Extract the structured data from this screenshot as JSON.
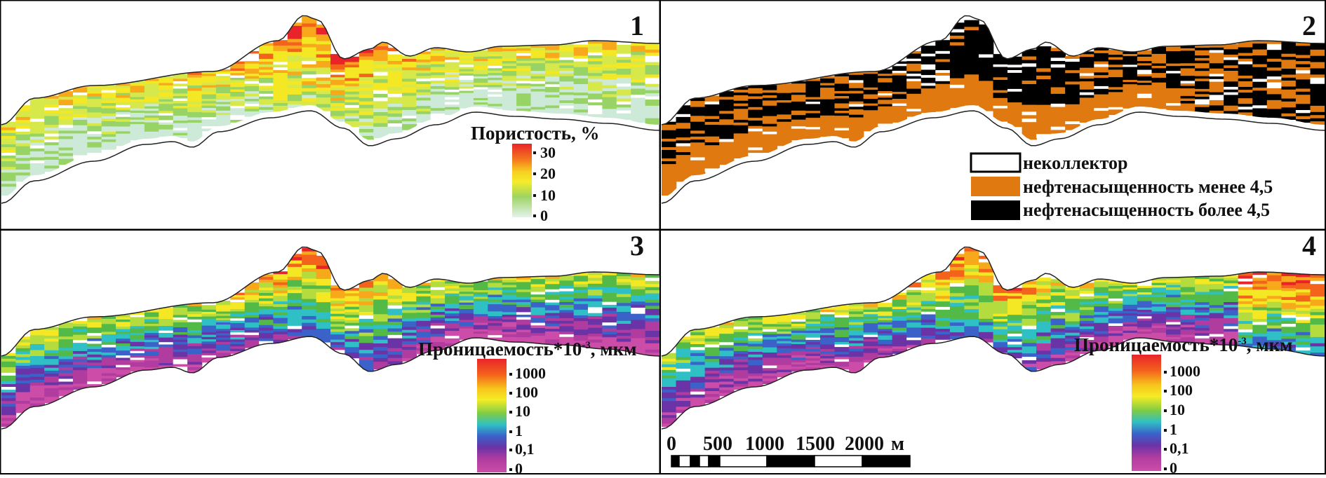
{
  "panels": [
    {
      "number": "1"
    },
    {
      "number": "2"
    },
    {
      "number": "3"
    },
    {
      "number": "4"
    }
  ],
  "porosity_scale": {
    "title": "Пористость, %",
    "ticks": [
      "30",
      "20",
      "10",
      "0"
    ]
  },
  "saturation_legend": [
    {
      "label": "неколлектор",
      "color": "#ffffff"
    },
    {
      "label": "нефтенасыщенность менее 4,5",
      "color": "#e07a10"
    },
    {
      "label": "нефтенасыщенность более 4,5",
      "color": "#000000"
    }
  ],
  "permeability_scale": {
    "title_main": "Проницаемость*10",
    "title_sup": "-3",
    "title_unit": ", мкм",
    "ticks": [
      "1000",
      "100",
      "10",
      "1",
      "0,1",
      "0"
    ]
  },
  "distance_scale": {
    "labels": [
      "0",
      "500",
      "1000",
      "1500",
      "2000",
      "м"
    ]
  },
  "colors": {
    "porosity": [
      "#e8242a",
      "#f4631c",
      "#f7a91b",
      "#f4e825",
      "#d6e84a",
      "#98d465",
      "#cde9d8",
      "#ffffff"
    ],
    "permeability": [
      "#e8242a",
      "#f4631c",
      "#f7a91b",
      "#f4e825",
      "#b4dc3f",
      "#53b947",
      "#2ec0c4",
      "#3a62c9",
      "#6a33a6",
      "#b03ca0",
      "#cc4da8"
    ],
    "saturation": [
      "#e07a10",
      "#000000"
    ]
  }
}
